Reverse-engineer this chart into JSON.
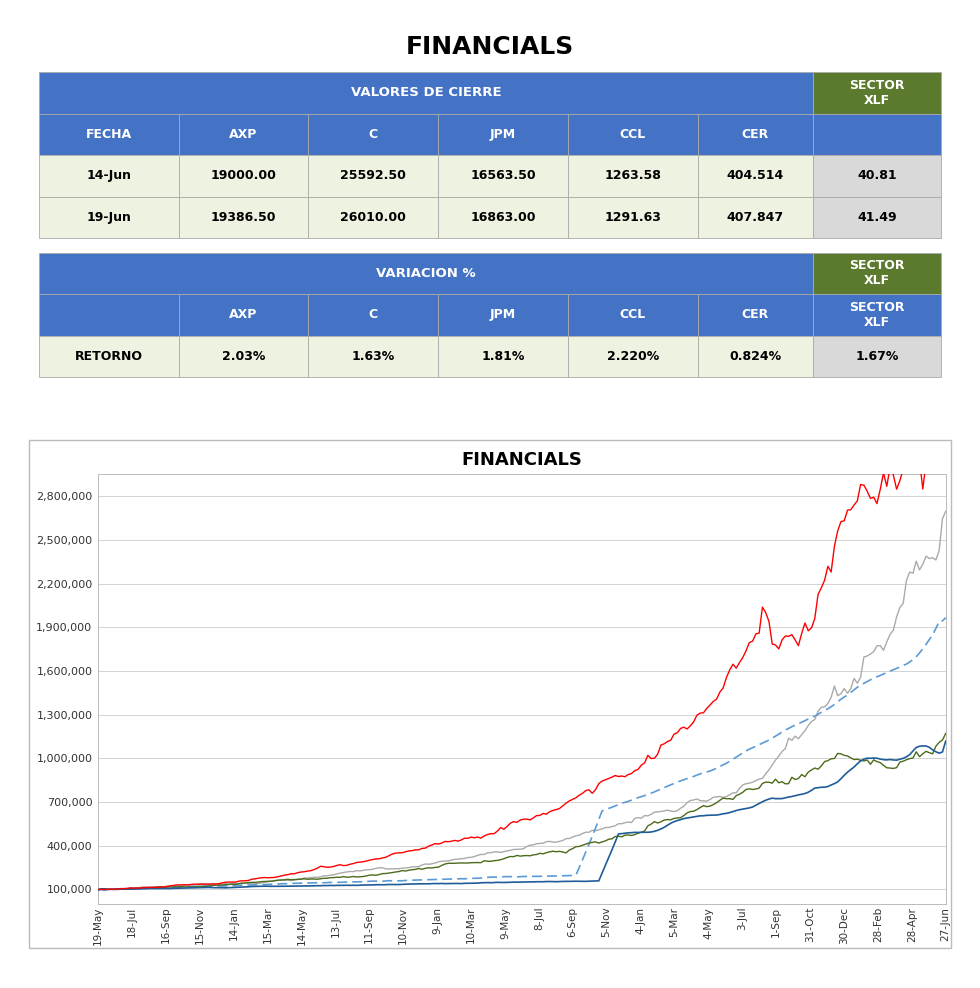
{
  "title": "FINANCIALS",
  "table1_col_headers": [
    "FECHA",
    "AXP",
    "C",
    "JPM",
    "CCL",
    "CER",
    "SECTOR\nXLF"
  ],
  "table1_rows": [
    [
      "14-Jun",
      "19000.00",
      "25592.50",
      "16563.50",
      "1263.58",
      "404.514",
      "40.81"
    ],
    [
      "19-Jun",
      "19386.50",
      "26010.00",
      "16863.00",
      "1291.63",
      "407.847",
      "41.49"
    ]
  ],
  "table2_col_headers": [
    "",
    "AXP",
    "C",
    "JPM",
    "CCL",
    "CER",
    "SECTOR\nXLF"
  ],
  "table2_rows": [
    [
      "RETORNO",
      "2.03%",
      "1.63%",
      "1.81%",
      "2.220%",
      "0.824%",
      "1.67%"
    ]
  ],
  "chart_title": "FINANCIALS",
  "x_labels": [
    "19-May",
    "18-Jul",
    "16-Sep",
    "15-Nov",
    "14-Jan",
    "15-Mar",
    "14-May",
    "13-Jul",
    "11-Sep",
    "10-Nov",
    "9-Jan",
    "10-Mar",
    "9-May",
    "8-Jul",
    "6-Sep",
    "5-Nov",
    "4-Jan",
    "5-Mar",
    "4-May",
    "3-Jul",
    "1-Sep",
    "31-Oct",
    "30-Dec",
    "28-Feb",
    "28-Apr",
    "27-Jun"
  ],
  "y_ticks": [
    100000,
    400000,
    700000,
    1000000,
    1300000,
    1600000,
    1900000,
    2200000,
    2500000,
    2800000
  ],
  "y_tick_labels": [
    "100,000",
    "400,000",
    "700,000",
    "1,000,000",
    "1,300,000",
    "1,600,000",
    "1,900,000",
    "2,200,000",
    "2,500,000",
    "2,800,000"
  ],
  "header_blue": "#4472C4",
  "header_green": "#5B7A2E",
  "row_light": "#EEF2E0",
  "row_gray": "#D9D9D9",
  "border_color": "#AAAAAA",
  "line_colors": {
    "AXP": "#FF0000",
    "C": "#4B6B1A",
    "JPM": "#AAAAAA",
    "CCL": "#1F5C99",
    "CER": "#5B9BD5"
  }
}
